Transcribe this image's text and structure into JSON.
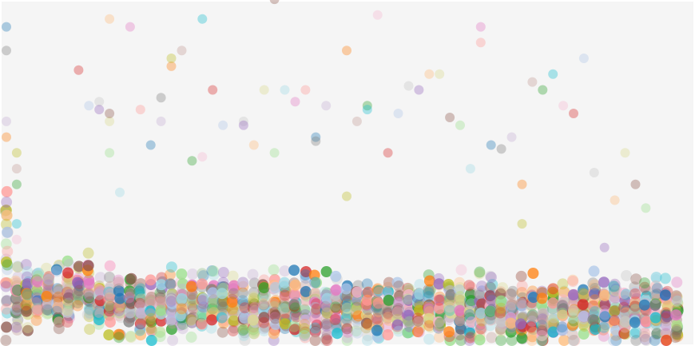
{
  "chart_data": {
    "type": "scatter",
    "title": "",
    "xlabel": "",
    "ylabel": "",
    "xlim": [
      0,
      66
    ],
    "ylim": [
      0,
      430
    ],
    "grid": false,
    "legend": "none",
    "background": "#f5f5f5",
    "palette": [
      "#1f77b4",
      "#ff7f0e",
      "#2ca02c",
      "#d62728",
      "#9467bd",
      "#8c564b",
      "#e377c2",
      "#7f7f7f",
      "#bcbd22",
      "#17becf",
      "#aec7e8",
      "#ffbb78",
      "#98df8a",
      "#ff9896",
      "#c5b0d5",
      "#c49c94",
      "#f7b6d2",
      "#c7c7c7",
      "#dbdb8d",
      "#9edae5"
    ],
    "core_centers": [
      62,
      58,
      57,
      57,
      58,
      60,
      62,
      66,
      63,
      54,
      50,
      48,
      46,
      44,
      45,
      48,
      46,
      45,
      43,
      46,
      48,
      50,
      44,
      42,
      45,
      43,
      42,
      44,
      45,
      43,
      41,
      42,
      44,
      43,
      41,
      40,
      42,
      43,
      41,
      40,
      41,
      43,
      42,
      40,
      39,
      40,
      42,
      41,
      39,
      38,
      40,
      39,
      37,
      38,
      40,
      39,
      37,
      36,
      38,
      39,
      37,
      36,
      37,
      38,
      36,
      35
    ],
    "outliers": [
      [
        0,
        400
      ],
      [
        0,
        370
      ],
      [
        0,
        280
      ],
      [
        0,
        260
      ],
      [
        1,
        240
      ],
      [
        1,
        220
      ],
      [
        1,
        200
      ],
      [
        1,
        150
      ],
      [
        1,
        130
      ],
      [
        7,
        345
      ],
      [
        8,
        300
      ],
      [
        9,
        305
      ],
      [
        9,
        295
      ],
      [
        10,
        410
      ],
      [
        10,
        280
      ],
      [
        10,
        290
      ],
      [
        10,
        240
      ],
      [
        11,
        190
      ],
      [
        12,
        400
      ],
      [
        13,
        295
      ],
      [
        14,
        250
      ],
      [
        15,
        310
      ],
      [
        15,
        280
      ],
      [
        16,
        350
      ],
      [
        16,
        360
      ],
      [
        17,
        370
      ],
      [
        18,
        230
      ],
      [
        19,
        410
      ],
      [
        19,
        235
      ],
      [
        20,
        320
      ],
      [
        21,
        275
      ],
      [
        23,
        280
      ],
      [
        23,
        275
      ],
      [
        24,
        250
      ],
      [
        25,
        320
      ],
      [
        26,
        435
      ],
      [
        26,
        240
      ],
      [
        27,
        320
      ],
      [
        28,
        305
      ],
      [
        29,
        320
      ],
      [
        30,
        260
      ],
      [
        30,
        255
      ],
      [
        31,
        300
      ],
      [
        33,
        370
      ],
      [
        33,
        185
      ],
      [
        34,
        280
      ],
      [
        35,
        300
      ],
      [
        35,
        295
      ],
      [
        36,
        415
      ],
      [
        37,
        240
      ],
      [
        38,
        290
      ],
      [
        39,
        325
      ],
      [
        40,
        320
      ],
      [
        41,
        340
      ],
      [
        42,
        340
      ],
      [
        43,
        285
      ],
      [
        44,
        275
      ],
      [
        45,
        220
      ],
      [
        46,
        400
      ],
      [
        46,
        380
      ],
      [
        47,
        250
      ],
      [
        48,
        245
      ],
      [
        49,
        260
      ],
      [
        50,
        200
      ],
      [
        50,
        150
      ],
      [
        51,
        330
      ],
      [
        52,
        320
      ],
      [
        53,
        340
      ],
      [
        54,
        300
      ],
      [
        55,
        290
      ],
      [
        56,
        360
      ],
      [
        57,
        215
      ],
      [
        58,
        120
      ],
      [
        59,
        180
      ],
      [
        60,
        240
      ],
      [
        61,
        200
      ],
      [
        62,
        170
      ],
      [
        63,
        80
      ]
    ]
  }
}
